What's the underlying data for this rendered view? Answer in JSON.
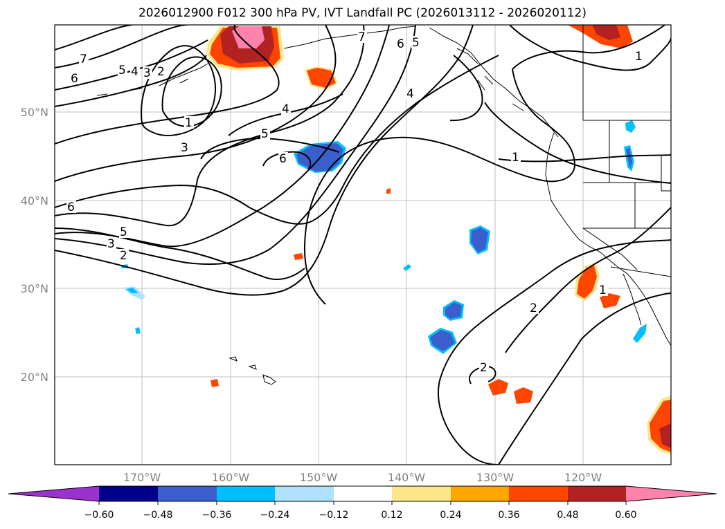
{
  "title": "2026012900 F012 300 hPa PV, IVT Landfall PC (2026013112 - 2026020112)",
  "lat_labels": [
    "50°N",
    "40°N",
    "30°N",
    "20°N"
  ],
  "lon_labels": [
    "170°W",
    "160°W",
    "150°W",
    "140°W",
    "130°W",
    "120°W"
  ],
  "contour_labels": [
    "7",
    "6",
    "5",
    "4",
    "3",
    "2",
    "7",
    "6",
    "5",
    "4",
    "1",
    "3",
    "4",
    "5",
    "6",
    "6",
    "5",
    "3",
    "2",
    "1",
    "1",
    "1",
    "2",
    "2"
  ],
  "colorbar": {
    "ticks": [
      "−0.60",
      "−0.48",
      "−0.36",
      "−0.24",
      "−0.12",
      "0.12",
      "0.24",
      "0.36",
      "0.48",
      "0.60"
    ],
    "colors": [
      "#9a32cd",
      "#00008b",
      "#3a5fcd",
      "#00bfff",
      "#b0e2ff",
      "#ffffff",
      "#fce68a",
      "#ffa500",
      "#ff4500",
      "#b22222",
      "#ff82ab"
    ]
  }
}
